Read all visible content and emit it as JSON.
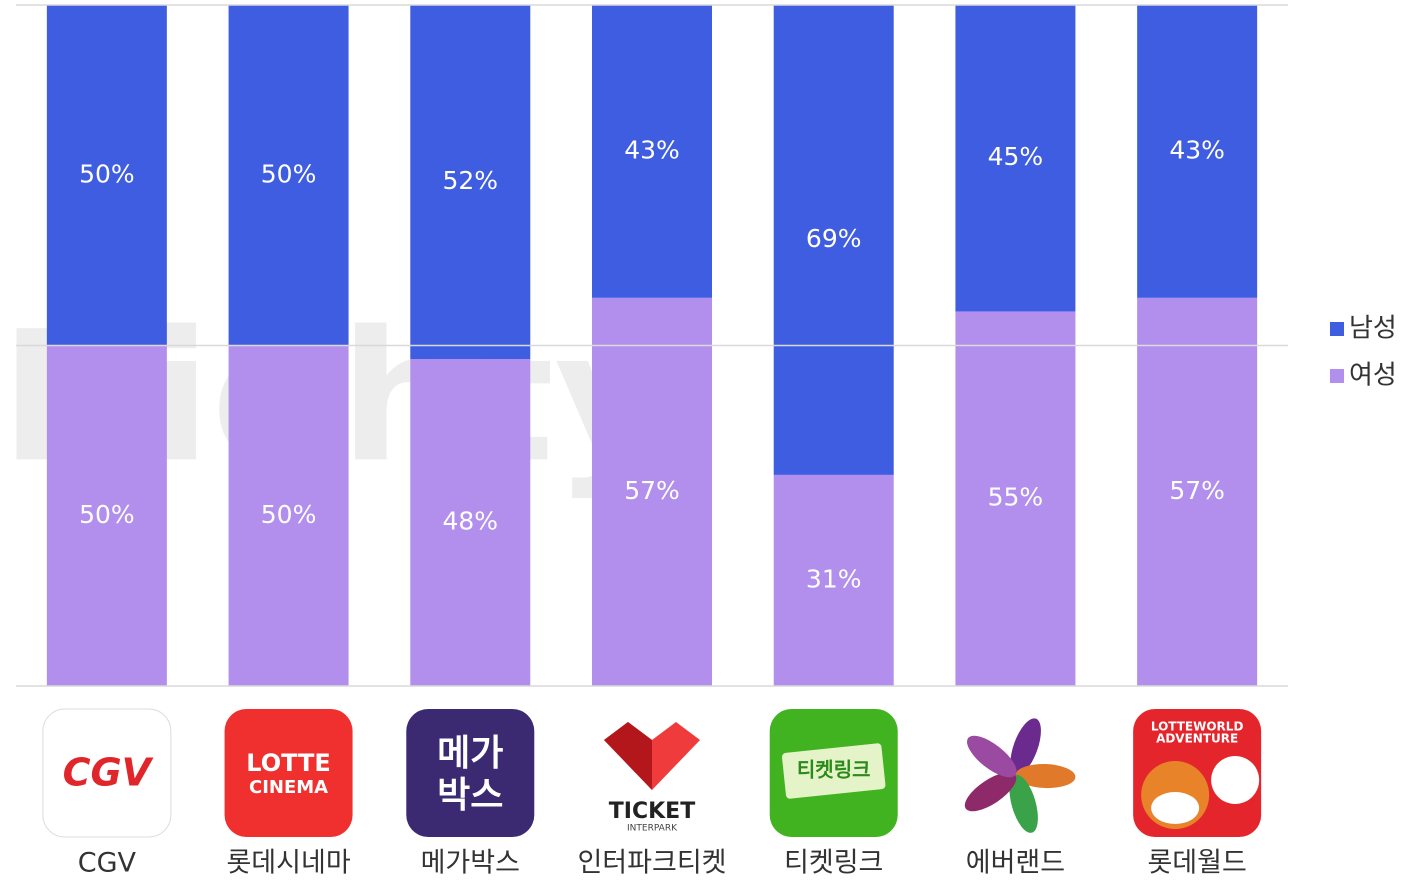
{
  "chart_data": {
    "type": "stacked_bar",
    "watermark": "Dighty",
    "categories": [
      "CGV",
      "롯데시네마",
      "메가박스",
      "인터파크티켓",
      "티켓링크",
      "에버랜드",
      "롯데월드"
    ],
    "series": [
      {
        "name": "남성",
        "color": "#3f5de0",
        "values": [
          50,
          50,
          52,
          43,
          69,
          45,
          43
        ],
        "value_labels": [
          "50%",
          "50%",
          "52%",
          "43%",
          "69%",
          "45%",
          "43%"
        ]
      },
      {
        "name": "여성",
        "color": "#b28fec",
        "values": [
          50,
          50,
          48,
          57,
          31,
          55,
          57
        ],
        "value_labels": [
          "50%",
          "50%",
          "48%",
          "57%",
          "31%",
          "55%",
          "57%"
        ]
      }
    ],
    "ylim": [
      0,
      100
    ],
    "yticks": [
      0,
      50,
      100
    ],
    "grid": true,
    "legend": "right",
    "icons": [
      {
        "color": "#ffffff",
        "text": [
          "CGV"
        ]
      },
      {
        "color": "#f0302e",
        "text": [
          "LOTTE",
          "CINEMA"
        ]
      },
      {
        "color": "#3b2a72",
        "text": [
          "메가",
          "박스"
        ]
      },
      {
        "color": "#ffffff",
        "text": [
          "TICKET",
          "INTERPARK"
        ]
      },
      {
        "color": "#41b320",
        "text": [
          "티켓링크"
        ]
      },
      {
        "color": "#ffffff"
      },
      {
        "color": "#e4262c",
        "text": [
          "LOTTEWORLD",
          "ADVENTURE"
        ]
      }
    ]
  }
}
